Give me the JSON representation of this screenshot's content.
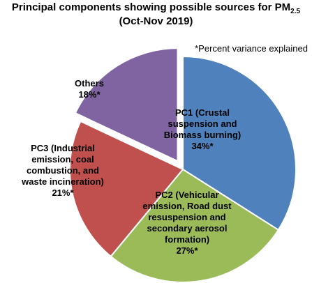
{
  "chart_data": {
    "type": "pie",
    "title": "Principal components showing possible sources for PM",
    "title_subscript": "2.5",
    "subtitle": "(Oct-Nov 2019)",
    "annotation": "*Percent variance explained",
    "categories": [
      "PC1 (Crustal suspension and Biomass burning)",
      "PC2 (Vehicular emission, Road dust resuspension and secondary aerosol formation)",
      "PC3 (Industrial emission, coal combustion, and waste incineration)",
      "Others"
    ],
    "values": [
      34,
      27,
      21,
      18
    ],
    "value_labels": [
      "34%*",
      "27%*",
      "21%*",
      "18%*"
    ],
    "colors": [
      "#4f81bd",
      "#9bbb59",
      "#c0504d",
      "#8064a2"
    ],
    "exploded": [
      false,
      false,
      false,
      true
    ]
  }
}
